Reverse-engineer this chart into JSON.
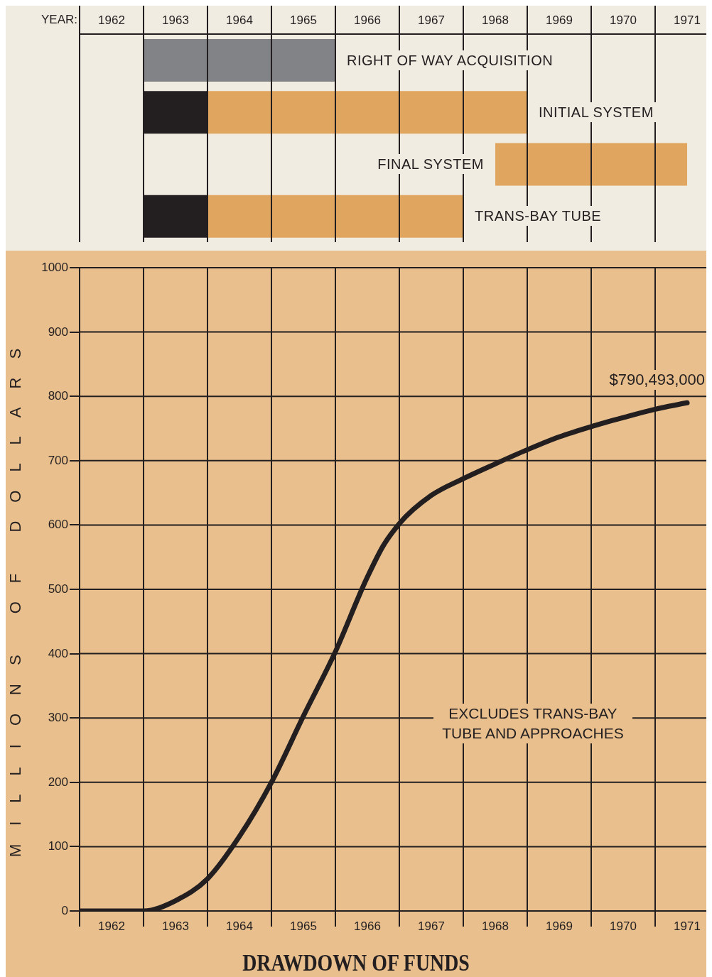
{
  "chart_data": [
    {
      "type": "bar",
      "orientation": "horizontal",
      "xlabel": "YEAR:",
      "categories": [
        "RIGHT OF WAY ACQUISITION",
        "INITIAL SYSTEM",
        "FINAL SYSTEM",
        "TRANS-BAY TUBE"
      ],
      "series": [
        {
          "color": "#818386",
          "base": [
            1963,
            null,
            null,
            null
          ],
          "values": [
            3,
            null,
            null,
            null
          ]
        },
        {
          "color": "#231f20",
          "base": [
            null,
            1963,
            null,
            1963
          ],
          "values": [
            null,
            1,
            null,
            1
          ]
        },
        {
          "color": "#e0a55f",
          "base": [
            null,
            1964,
            1968.5,
            1964
          ],
          "values": [
            null,
            5,
            3,
            4
          ]
        }
      ],
      "xlim": [
        1962,
        1971.8
      ],
      "xticks": [
        {
          "value": 1962,
          "label": null
        },
        {
          "value": 1962.5,
          "label": "1962"
        },
        {
          "value": 1963,
          "label": null
        },
        {
          "value": 1963.5,
          "label": "1963"
        },
        {
          "value": 1964,
          "label": null
        },
        {
          "value": 1964.5,
          "label": "1964"
        },
        {
          "value": 1965,
          "label": null
        },
        {
          "value": 1965.5,
          "label": "1965"
        },
        {
          "value": 1966,
          "label": null
        },
        {
          "value": 1966.5,
          "label": "1966"
        },
        {
          "value": 1967,
          "label": null
        },
        {
          "value": 1967.5,
          "label": "1967"
        },
        {
          "value": 1968,
          "label": null
        },
        {
          "value": 1968.5,
          "label": "1968"
        },
        {
          "value": 1969,
          "label": null
        },
        {
          "value": 1969.5,
          "label": "1969"
        },
        {
          "value": 1970,
          "label": null
        },
        {
          "value": 1970.5,
          "label": "1970"
        },
        {
          "value": 1971,
          "label": null
        },
        {
          "value": 1971.5,
          "label": "1971"
        }
      ],
      "grid": "x"
    },
    {
      "type": "line",
      "title": "DRAWDOWN OF FUNDS",
      "ylabel": "MILLIONS OF DOLLARS",
      "x": [
        1962,
        1963,
        1963.5,
        1964,
        1964.5,
        1965,
        1965.5,
        1966,
        1966.5,
        1966.75,
        1967,
        1967.5,
        1968,
        1968.5,
        1969,
        1969.5,
        1970,
        1970.5,
        1971,
        1971.5
      ],
      "series": [
        {
          "color": "#231f20",
          "values": [
            0,
            0,
            16,
            50,
            116,
            200,
            303,
            403,
            519,
            568,
            602,
            646,
            672,
            695,
            717,
            737,
            753,
            767,
            780,
            790
          ]
        }
      ],
      "xlim": [
        1962,
        1971.8
      ],
      "xticks": [
        {
          "value": 1962,
          "label": null
        },
        {
          "value": 1962.5,
          "label": "1962"
        },
        {
          "value": 1963,
          "label": null
        },
        {
          "value": 1963.5,
          "label": "1963"
        },
        {
          "value": 1964,
          "label": null
        },
        {
          "value": 1964.5,
          "label": "1964"
        },
        {
          "value": 1965,
          "label": null
        },
        {
          "value": 1965.5,
          "label": "1965"
        },
        {
          "value": 1966,
          "label": null
        },
        {
          "value": 1966.5,
          "label": "1966"
        },
        {
          "value": 1967,
          "label": null
        },
        {
          "value": 1967.5,
          "label": "1967"
        },
        {
          "value": 1968,
          "label": null
        },
        {
          "value": 1968.5,
          "label": "1968"
        },
        {
          "value": 1969,
          "label": null
        },
        {
          "value": 1969.5,
          "label": "1969"
        },
        {
          "value": 1970,
          "label": null
        },
        {
          "value": 1970.5,
          "label": "1970"
        },
        {
          "value": 1971,
          "label": null
        },
        {
          "value": 1971.5,
          "label": "1971"
        }
      ],
      "ylim": [
        0,
        1000
      ],
      "yticks": [
        0,
        100,
        200,
        300,
        400,
        500,
        600,
        700,
        800,
        900,
        1000
      ],
      "grid": true,
      "annotations": [
        {
          "text": "$790,493,000",
          "x": 1971.5,
          "y": 790
        },
        "EXCLUDES TRANS-BAY TUBE AND APPROACHES"
      ]
    }
  ]
}
